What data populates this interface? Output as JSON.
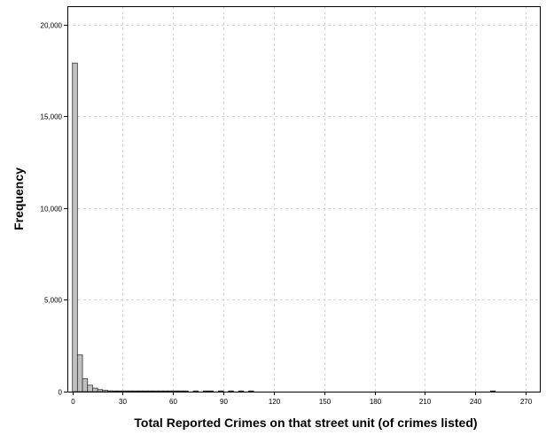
{
  "chart_data": {
    "type": "bar",
    "title": "",
    "xlabel": "Total Reported Crimes on that street unit (of crimes listed)",
    "ylabel": "Frequency",
    "xlim": [
      -3,
      279
    ],
    "ylim": [
      0,
      21000
    ],
    "x_ticks": [
      0,
      30,
      60,
      90,
      120,
      150,
      180,
      210,
      240,
      270
    ],
    "y_ticks": [
      0,
      5000,
      10000,
      15000,
      20000
    ],
    "y_tick_labels": [
      "0",
      "5,000",
      "10,000",
      "15,000",
      "20,000"
    ],
    "grid": true,
    "bin_width": 3,
    "bins": [
      {
        "x": 0,
        "count": 17900
      },
      {
        "x": 3,
        "count": 2000
      },
      {
        "x": 6,
        "count": 700
      },
      {
        "x": 9,
        "count": 350
      },
      {
        "x": 12,
        "count": 190
      },
      {
        "x": 15,
        "count": 110
      },
      {
        "x": 18,
        "count": 70
      },
      {
        "x": 21,
        "count": 45
      },
      {
        "x": 24,
        "count": 30
      },
      {
        "x": 27,
        "count": 20
      },
      {
        "x": 30,
        "count": 15
      },
      {
        "x": 33,
        "count": 12
      },
      {
        "x": 36,
        "count": 10
      },
      {
        "x": 39,
        "count": 8
      },
      {
        "x": 42,
        "count": 6
      },
      {
        "x": 45,
        "count": 5
      },
      {
        "x": 48,
        "count": 4
      },
      {
        "x": 51,
        "count": 3
      },
      {
        "x": 54,
        "count": 3
      },
      {
        "x": 57,
        "count": 2
      },
      {
        "x": 60,
        "count": 2
      },
      {
        "x": 63,
        "count": 2
      },
      {
        "x": 66,
        "count": 1
      },
      {
        "x": 72,
        "count": 1
      },
      {
        "x": 78,
        "count": 1
      },
      {
        "x": 81,
        "count": 1
      },
      {
        "x": 87,
        "count": 1
      },
      {
        "x": 93,
        "count": 1
      },
      {
        "x": 99,
        "count": 1
      },
      {
        "x": 105,
        "count": 1
      },
      {
        "x": 249,
        "count": 1
      }
    ],
    "colors": {
      "bar_fill": "#c0c0c0",
      "bar_stroke": "#333333",
      "grid": "#d9d9d9",
      "frame": "#000000"
    }
  }
}
